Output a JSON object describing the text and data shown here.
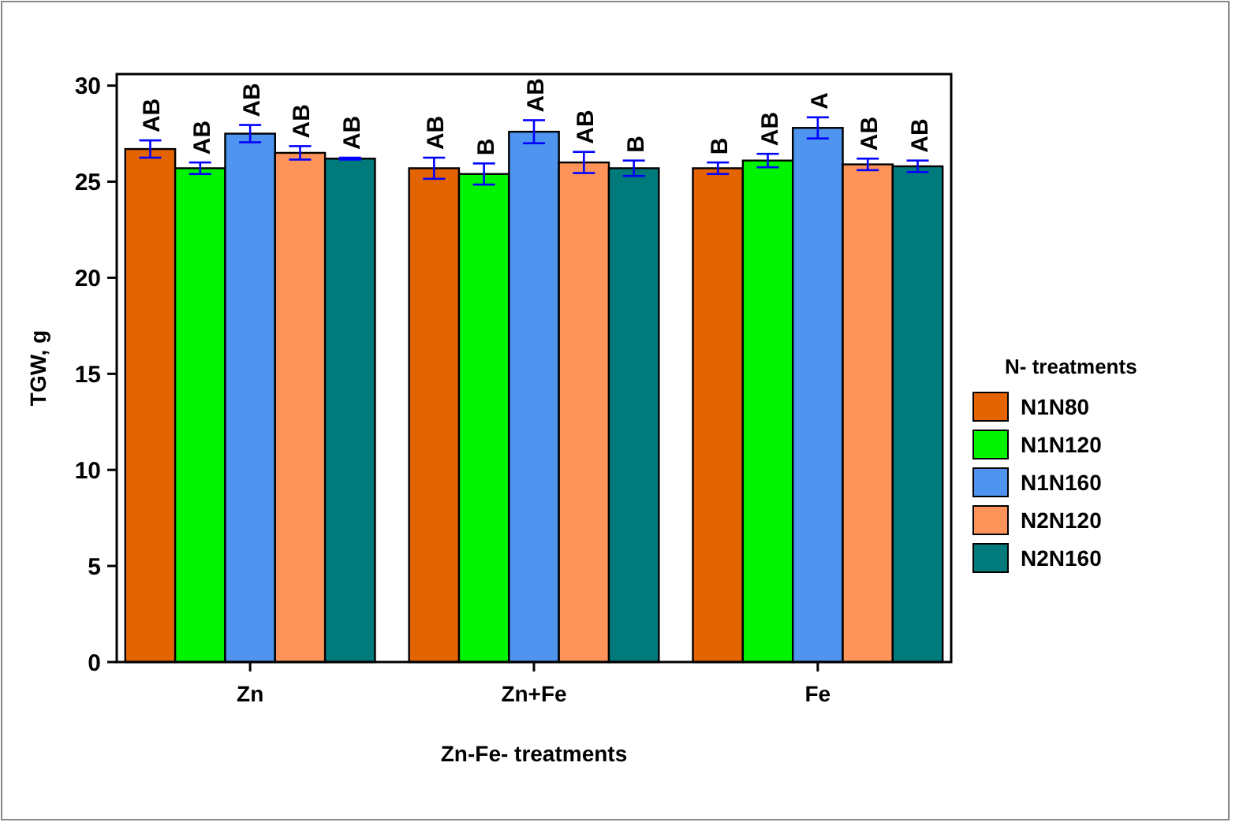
{
  "chart_data": {
    "type": "bar",
    "xlabel": "Zn-Fe- treatments",
    "ylabel": "TGW, g",
    "legend_title": "N- treatments",
    "legend": "right",
    "categories": [
      "Zn",
      "Zn+Fe",
      "Fe"
    ],
    "ylim": [
      0,
      30.6
    ],
    "yticks": [
      0,
      5,
      10,
      15,
      20,
      25,
      30
    ],
    "grid": false,
    "series": [
      {
        "name": "N1N80",
        "color": "#e36400",
        "values": [
          26.7,
          25.7,
          25.7
        ],
        "errors": [
          0.45,
          0.55,
          0.3
        ],
        "value_labels": [
          "AB",
          "AB",
          "B"
        ]
      },
      {
        "name": "N1N120",
        "color": "#00f400",
        "values": [
          25.7,
          25.4,
          26.1
        ],
        "errors": [
          0.3,
          0.55,
          0.35
        ],
        "value_labels": [
          "AB",
          "B",
          "AB"
        ]
      },
      {
        "name": "N1N160",
        "color": "#4f94ef",
        "values": [
          27.5,
          27.6,
          27.8
        ],
        "errors": [
          0.45,
          0.6,
          0.55
        ],
        "value_labels": [
          "AB",
          "AB",
          "A"
        ]
      },
      {
        "name": "N2N120",
        "color": "#fe945a",
        "values": [
          26.5,
          26.0,
          25.9
        ],
        "errors": [
          0.35,
          0.55,
          0.3
        ],
        "value_labels": [
          "AB",
          "AB",
          "AB"
        ]
      },
      {
        "name": "N2N160",
        "color": "#007a7a",
        "values": [
          26.2,
          25.7,
          25.8
        ],
        "errors": [
          0.05,
          0.4,
          0.3
        ],
        "value_labels": [
          "AB",
          "B",
          "AB"
        ]
      }
    ]
  }
}
